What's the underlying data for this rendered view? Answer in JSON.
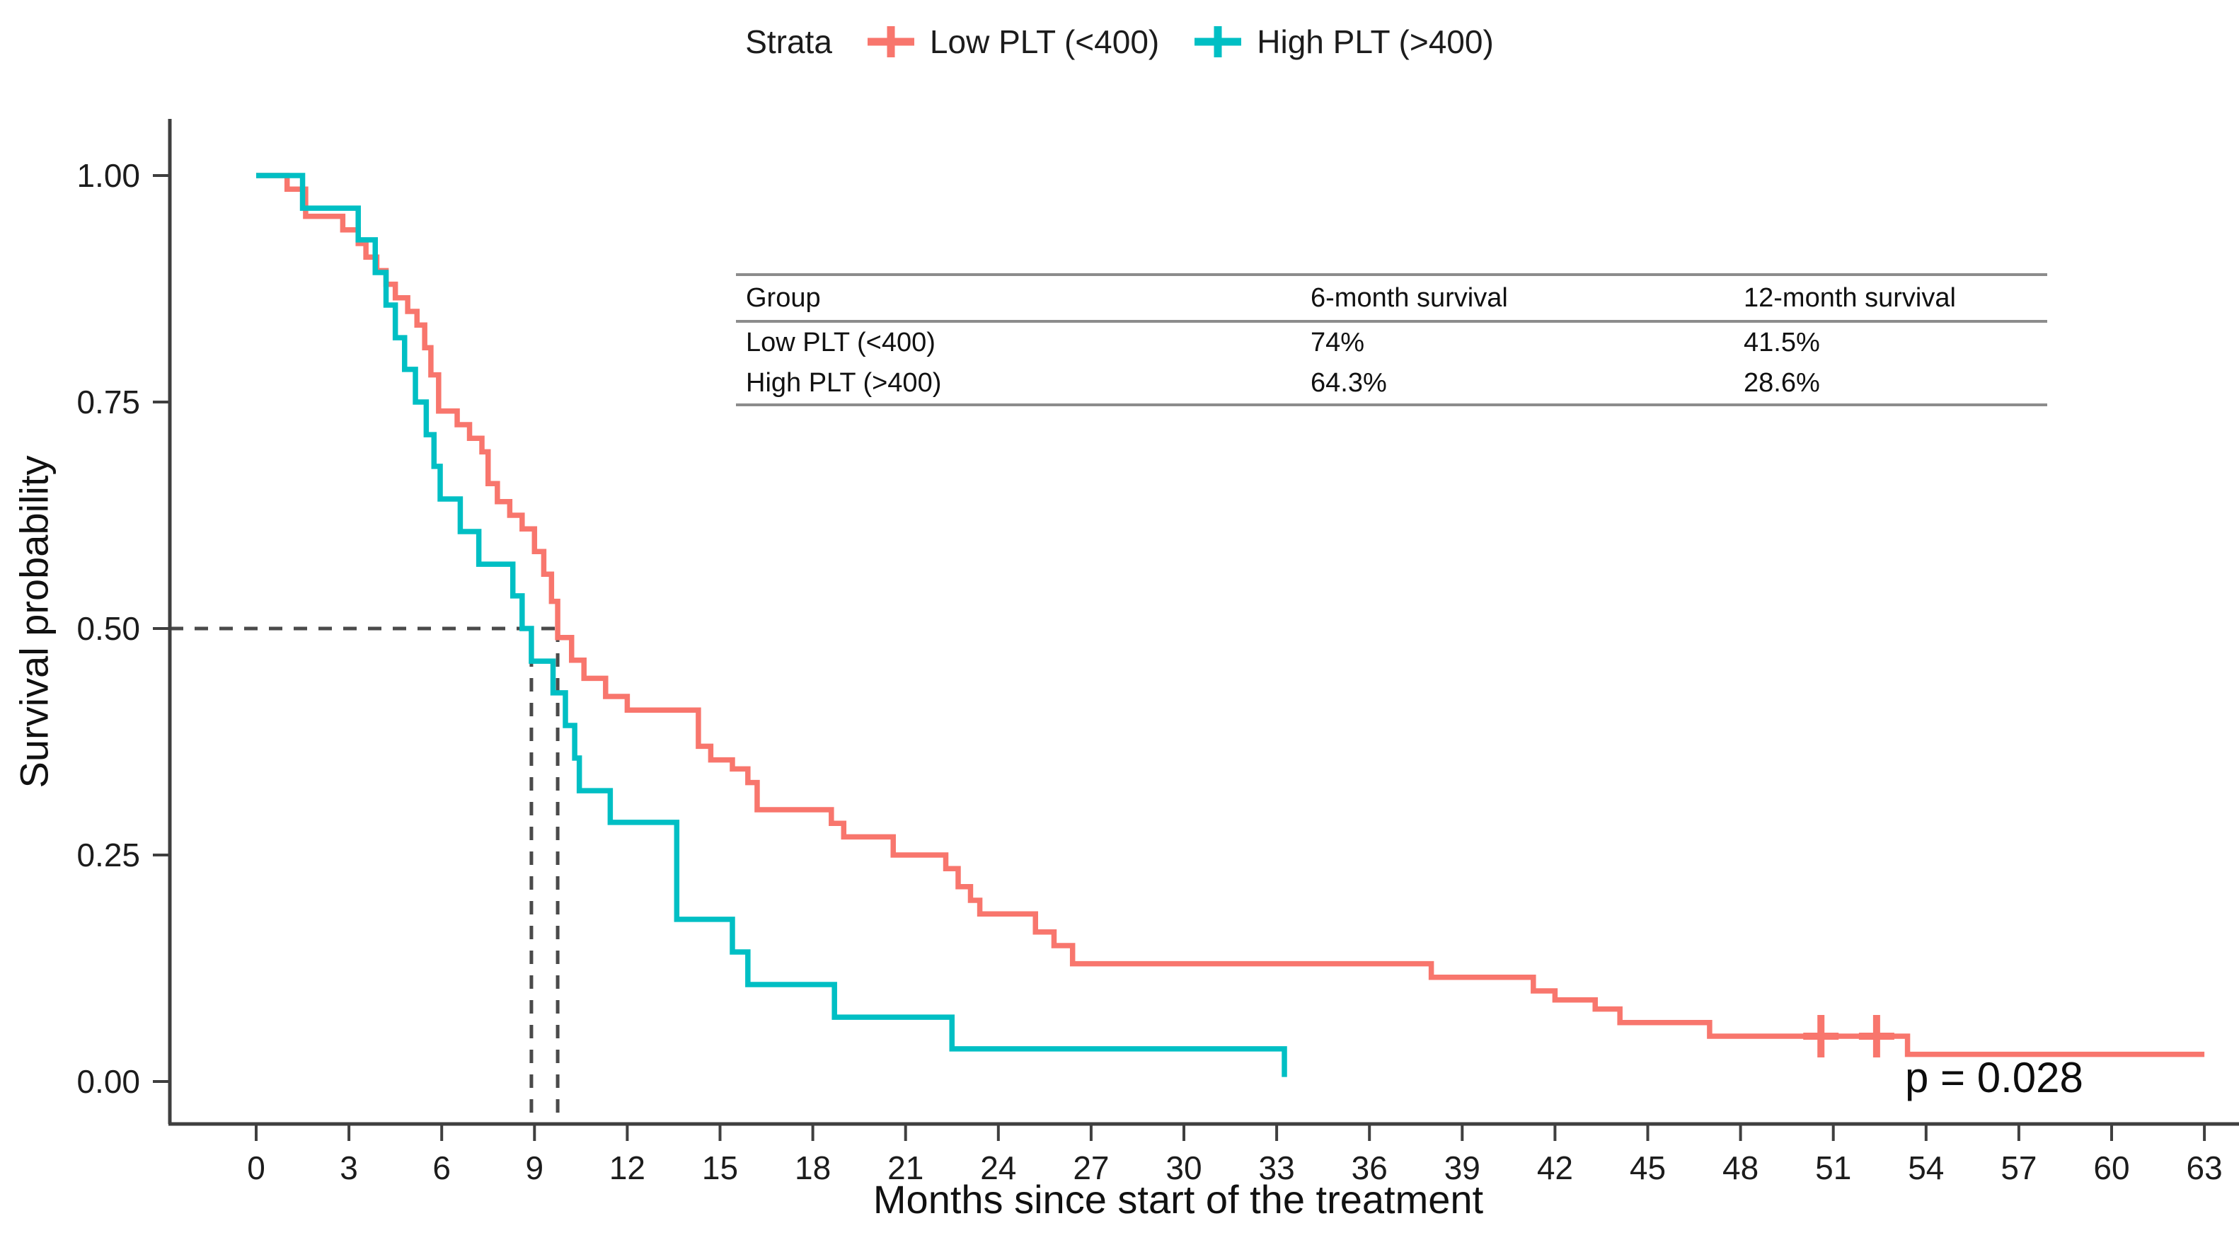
{
  "figure": {
    "background": "#ffffff"
  },
  "legend": {
    "title": "Strata",
    "items": [
      {
        "label": "Low PLT (<400)",
        "color": "#F8766D"
      },
      {
        "label": "High PLT (>400)",
        "color": "#00BFC4"
      }
    ]
  },
  "axes": {
    "x": {
      "title": "Months since start of the treatment",
      "ticks": [
        0,
        3,
        6,
        9,
        12,
        15,
        18,
        21,
        24,
        27,
        30,
        33,
        36,
        39,
        42,
        45,
        48,
        51,
        54,
        57,
        60,
        63
      ]
    },
    "y": {
      "title": "Survival probability",
      "ticks": [
        {
          "v": 0.0,
          "label": "0.00"
        },
        {
          "v": 0.25,
          "label": "0.25"
        },
        {
          "v": 0.5,
          "label": "0.50"
        },
        {
          "v": 0.75,
          "label": "0.75"
        },
        {
          "v": 1.0,
          "label": "1.00"
        }
      ]
    }
  },
  "annotations": {
    "p_label": "p = 0.028"
  },
  "inset_table": {
    "headers": [
      "Group",
      "6-month survival",
      "12-month survival"
    ],
    "rows": [
      [
        "Low PLT (<400)",
        "74%",
        "41.5%"
      ],
      [
        "High PLT (>400)",
        "64.3%",
        "28.6%"
      ]
    ]
  },
  "chart_data": {
    "type": "line",
    "subtype": "kaplan-meier-step",
    "xlabel": "Months since start of the treatment",
    "ylabel": "Survival probability",
    "xlim": [
      0,
      63
    ],
    "ylim": [
      0,
      1
    ],
    "grid": false,
    "legend_position": "top",
    "guide_color": "#4a4a4a",
    "p_value": 0.028,
    "median_guides": {
      "y": 0.5,
      "x_values": [
        8.9,
        9.75
      ]
    },
    "series": [
      {
        "name": "Low PLT (<400)",
        "color": "#F8766D",
        "six_month_survival": 0.74,
        "twelve_month_survival": 0.415,
        "median_months": 9.75,
        "points": [
          [
            0,
            1.0
          ],
          [
            1.0,
            0.985
          ],
          [
            1.6,
            0.955
          ],
          [
            2.8,
            0.94
          ],
          [
            3.3,
            0.925
          ],
          [
            3.55,
            0.91
          ],
          [
            3.9,
            0.895
          ],
          [
            4.2,
            0.88
          ],
          [
            4.5,
            0.865
          ],
          [
            4.9,
            0.85
          ],
          [
            5.2,
            0.835
          ],
          [
            5.45,
            0.81
          ],
          [
            5.65,
            0.78
          ],
          [
            5.9,
            0.74
          ],
          [
            6.5,
            0.725
          ],
          [
            6.9,
            0.71
          ],
          [
            7.3,
            0.695
          ],
          [
            7.5,
            0.66
          ],
          [
            7.8,
            0.64
          ],
          [
            8.2,
            0.625
          ],
          [
            8.6,
            0.61
          ],
          [
            9.0,
            0.585
          ],
          [
            9.3,
            0.56
          ],
          [
            9.55,
            0.53
          ],
          [
            9.75,
            0.49
          ],
          [
            10.2,
            0.465
          ],
          [
            10.6,
            0.445
          ],
          [
            11.3,
            0.425
          ],
          [
            12.0,
            0.41
          ],
          [
            14.3,
            0.37
          ],
          [
            14.7,
            0.355
          ],
          [
            15.4,
            0.345
          ],
          [
            15.9,
            0.33
          ],
          [
            16.2,
            0.3
          ],
          [
            18.6,
            0.285
          ],
          [
            19.0,
            0.27
          ],
          [
            20.6,
            0.25
          ],
          [
            22.3,
            0.235
          ],
          [
            22.7,
            0.215
          ],
          [
            23.1,
            0.2
          ],
          [
            23.4,
            0.185
          ],
          [
            25.2,
            0.165
          ],
          [
            25.8,
            0.15
          ],
          [
            26.4,
            0.13
          ],
          [
            38.0,
            0.115
          ],
          [
            41.3,
            0.1
          ],
          [
            42.0,
            0.09
          ],
          [
            43.3,
            0.08
          ],
          [
            44.1,
            0.065
          ],
          [
            47.0,
            0.05
          ],
          [
            53.4,
            0.03
          ],
          [
            63,
            0.03
          ]
        ],
        "censored": [
          [
            50.6,
            0.05
          ],
          [
            52.4,
            0.05
          ]
        ]
      },
      {
        "name": "High PLT (>400)",
        "color": "#00BFC4",
        "six_month_survival": 0.643,
        "twelve_month_survival": 0.286,
        "median_months": 8.9,
        "points": [
          [
            0,
            1.0
          ],
          [
            1.5,
            0.964
          ],
          [
            3.3,
            0.929
          ],
          [
            3.85,
            0.893
          ],
          [
            4.2,
            0.857
          ],
          [
            4.5,
            0.821
          ],
          [
            4.8,
            0.786
          ],
          [
            5.15,
            0.75
          ],
          [
            5.5,
            0.714
          ],
          [
            5.75,
            0.679
          ],
          [
            5.95,
            0.643
          ],
          [
            6.6,
            0.607
          ],
          [
            7.2,
            0.571
          ],
          [
            8.3,
            0.536
          ],
          [
            8.6,
            0.5
          ],
          [
            8.9,
            0.464
          ],
          [
            9.6,
            0.429
          ],
          [
            10.0,
            0.393
          ],
          [
            10.3,
            0.357
          ],
          [
            10.45,
            0.321
          ],
          [
            11.45,
            0.286
          ],
          [
            13.6,
            0.179
          ],
          [
            15.4,
            0.143
          ],
          [
            15.9,
            0.107
          ],
          [
            18.7,
            0.071
          ],
          [
            22.5,
            0.036
          ],
          [
            33.25,
            0.005
          ]
        ],
        "censored": []
      }
    ]
  }
}
